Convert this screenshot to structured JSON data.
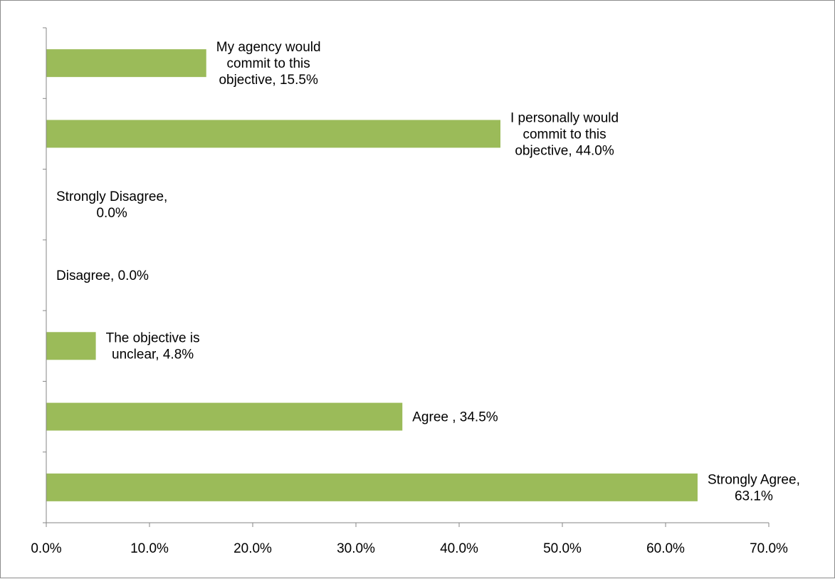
{
  "chart_data": {
    "type": "bar",
    "orientation": "horizontal",
    "title": "",
    "xlabel": "",
    "ylabel": "",
    "categories": [
      "Strongly Agree",
      "Agree ",
      "The objective is unclear",
      "Disagree",
      "Strongly Disagree",
      "I personally would commit to this objective",
      "My agency would commit to this objective"
    ],
    "values": [
      63.1,
      34.5,
      4.8,
      0.0,
      0.0,
      44.0,
      15.5
    ],
    "data_labels": [
      [
        "Strongly Agree,",
        "63.1%"
      ],
      [
        "Agree , 34.5%"
      ],
      [
        "The objective is",
        "unclear, 4.8%"
      ],
      [
        "Disagree, 0.0%"
      ],
      [
        "Strongly Disagree,",
        "0.0%"
      ],
      [
        "I personally would",
        "commit to this",
        "objective, 44.0%"
      ],
      [
        "My agency would",
        "commit to this",
        "objective, 15.5%"
      ]
    ],
    "xlim": [
      0,
      70
    ],
    "x_ticks": [
      0,
      10,
      20,
      30,
      40,
      50,
      60,
      70
    ],
    "x_tick_labels": [
      "0.0%",
      "10.0%",
      "20.0%",
      "30.0%",
      "40.0%",
      "50.0%",
      "60.0%",
      "70.0%"
    ],
    "grid": false,
    "legend": "none",
    "bar_color": "#9BBB59",
    "axis_color": "#868686"
  }
}
